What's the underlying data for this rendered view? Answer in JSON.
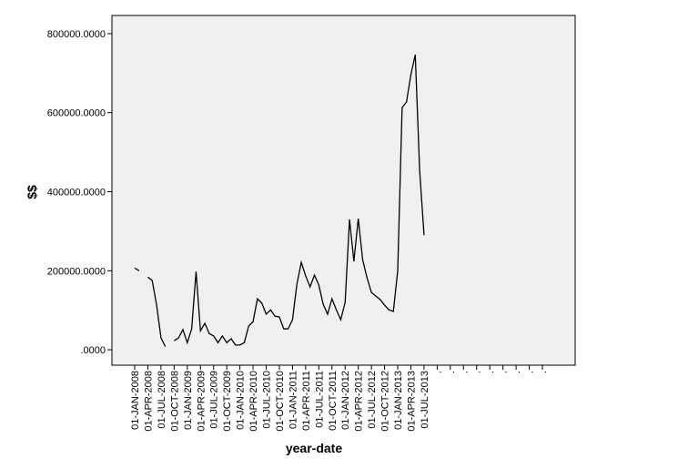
{
  "chart_data": {
    "type": "line",
    "x_label": "year-date",
    "y_label": "$$",
    "categories": [
      "01-JAN-2008",
      null,
      null,
      "01-APR-2008",
      null,
      null,
      "01-JUL-2008",
      null,
      null,
      "01-OCT-2008",
      null,
      null,
      "01-JAN-2009",
      null,
      null,
      "01-APR-2009",
      null,
      null,
      "01-JUL-2009",
      null,
      null,
      "01-OCT-2009",
      null,
      null,
      "01-JAN-2010",
      null,
      null,
      "01-APR-2010",
      null,
      null,
      "01-JUL-2010",
      null,
      null,
      "01-OCT-2010",
      null,
      null,
      "01-JAN-2011",
      null,
      null,
      "01-APR-2011",
      null,
      null,
      "01-JUL-2011",
      null,
      null,
      "01-OCT-2011",
      null,
      null,
      "01-JAN-2012",
      null,
      null,
      "01-APR-2012",
      null,
      null,
      "01-JUL-2012",
      null,
      null,
      "01-OCT-2012",
      null,
      null,
      "01-JAN-2013",
      null,
      null,
      "01-APR-2013",
      null,
      null,
      "01-JUL-2013",
      null,
      null,
      ".",
      null,
      null,
      ".",
      null,
      null,
      ".",
      null,
      null,
      ".",
      null,
      null,
      ".",
      null,
      null,
      ".",
      null,
      null,
      ".",
      null,
      null,
      ".",
      null,
      null,
      "."
    ],
    "series": [
      {
        "color": "#000000",
        "values": [
          207000,
          200000,
          null,
          184000,
          175000,
          113000,
          30000,
          8000,
          null,
          23000,
          30000,
          51000,
          18000,
          53000,
          198000,
          48000,
          67000,
          41000,
          35000,
          18000,
          35000,
          18000,
          28000,
          12000,
          12000,
          18000,
          60000,
          71000,
          129000,
          118000,
          90000,
          101000,
          85000,
          83000,
          53000,
          53000,
          76000,
          166000,
          221000,
          187000,
          159000,
          189000,
          164000,
          115000,
          90000,
          129000,
          101000,
          76000,
          120000,
          330000,
          224000,
          332000,
          228000,
          182000,
          145000,
          136000,
          127000,
          113000,
          101000,
          97000,
          200000,
          613000,
          627000,
          696000,
          747000,
          454000,
          290000,
          null,
          null,
          null,
          null,
          null,
          null,
          null,
          null,
          null,
          null,
          null,
          null,
          null,
          null,
          null,
          null,
          null,
          null,
          null,
          null,
          null,
          null,
          null,
          null,
          null,
          null,
          null
        ]
      }
    ],
    "ylim": [
      -39000,
      846000
    ],
    "yticks": [
      {
        "value": 0,
        "label": ".0000"
      },
      {
        "value": 200000,
        "label": "200000.0000"
      },
      {
        "value": 400000,
        "label": "400000.0000"
      },
      {
        "value": 600000,
        "label": "600000.0000"
      },
      {
        "value": 800000,
        "label": "800000.0000"
      }
    ],
    "plot_background": "#f0f0f0"
  }
}
